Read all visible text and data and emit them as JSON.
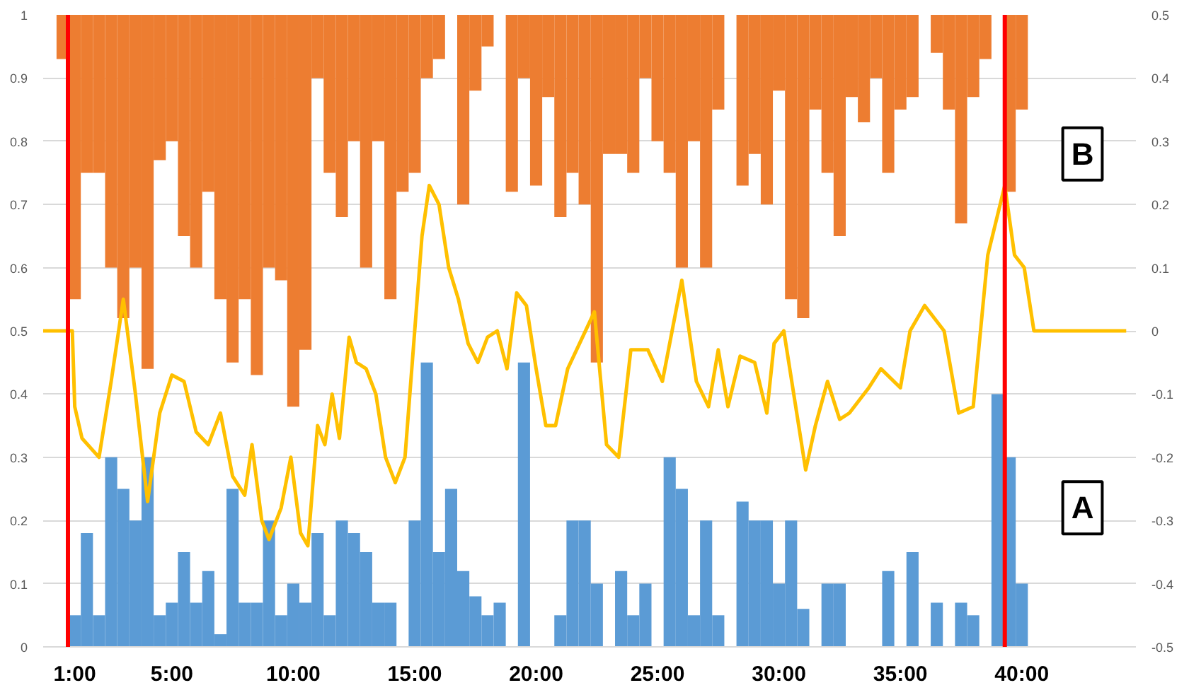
{
  "chart_data": {
    "type": "bar",
    "x": [
      0.5,
      1,
      1.5,
      2,
      2.5,
      3,
      3.5,
      4,
      4.5,
      5,
      5.5,
      6,
      6.5,
      7,
      7.5,
      8,
      8.5,
      9,
      9.5,
      10,
      10.5,
      11,
      11.5,
      12,
      12.5,
      13,
      13.5,
      14,
      14.5,
      15,
      15.5,
      16,
      16.5,
      17,
      17.5,
      18,
      18.5,
      19,
      19.5,
      20,
      20.5,
      21,
      21.5,
      22,
      22.5,
      23,
      23.5,
      24,
      24.5,
      25,
      25.5,
      26,
      26.5,
      27,
      27.5,
      28,
      28.5,
      29,
      29.5,
      30,
      30.5,
      31,
      31.5,
      32,
      32.5,
      33,
      33.5,
      34,
      34.5,
      35,
      35.5,
      36,
      36.5,
      37,
      37.5,
      38,
      38.5,
      39,
      39.5,
      40
    ],
    "series": [
      {
        "name": "B",
        "color": "#ed7d31",
        "base": [
          1,
          1,
          1,
          1,
          1,
          1,
          1,
          1,
          1,
          1,
          1,
          1,
          1,
          1,
          1,
          1,
          1,
          1,
          1,
          1,
          1,
          1,
          1,
          1,
          1,
          1,
          1,
          1,
          1,
          1,
          1,
          1,
          null,
          1,
          1,
          1,
          null,
          1,
          1,
          1,
          1,
          1,
          1,
          1,
          1,
          1,
          1,
          1,
          1,
          1,
          1,
          1,
          1,
          1,
          1,
          null,
          1,
          1,
          1,
          1,
          1,
          1,
          1,
          1,
          1,
          1,
          1,
          1,
          1,
          1,
          1,
          null,
          1,
          1,
          1,
          1,
          1,
          null,
          1,
          1
        ],
        "values": [
          -0.07,
          -0.45,
          -0.25,
          -0.25,
          -0.4,
          -0.48,
          -0.4,
          -0.56,
          -0.23,
          -0.2,
          -0.35,
          -0.4,
          -0.28,
          -0.45,
          -0.55,
          -0.45,
          -0.57,
          -0.4,
          -0.42,
          -0.62,
          -0.53,
          -0.1,
          -0.25,
          -0.32,
          -0.2,
          -0.4,
          -0.2,
          -0.45,
          -0.28,
          -0.25,
          -0.1,
          -0.07,
          null,
          -0.3,
          -0.12,
          -0.05,
          null,
          -0.28,
          -0.1,
          -0.27,
          -0.13,
          -0.32,
          -0.25,
          -0.3,
          -0.55,
          -0.22,
          -0.22,
          -0.25,
          -0.1,
          -0.2,
          -0.25,
          -0.4,
          -0.2,
          -0.4,
          -0.15,
          null,
          -0.27,
          -0.22,
          -0.3,
          -0.12,
          -0.45,
          -0.48,
          -0.15,
          -0.25,
          -0.35,
          -0.13,
          -0.17,
          -0.1,
          -0.25,
          -0.15,
          -0.13,
          null,
          -0.06,
          -0.15,
          -0.33,
          -0.13,
          -0.07,
          null,
          -0.28,
          -0.15
        ]
      },
      {
        "name": "A",
        "color": "#5b9bd5",
        "values": [
          null,
          0.05,
          0.18,
          0.05,
          0.3,
          0.25,
          0.2,
          0.3,
          0.05,
          0.07,
          0.15,
          0.07,
          0.12,
          0.02,
          0.25,
          0.07,
          0.07,
          0.2,
          0.05,
          0.1,
          0.07,
          0.18,
          0.05,
          0.2,
          0.18,
          0.15,
          0.07,
          0.07,
          null,
          0.2,
          0.45,
          0.15,
          0.25,
          0.12,
          0.08,
          0.05,
          0.07,
          null,
          0.45,
          null,
          null,
          0.05,
          0.2,
          0.2,
          0.1,
          null,
          0.12,
          0.05,
          0.1,
          null,
          0.3,
          0.25,
          0.05,
          0.2,
          0.05,
          null,
          0.23,
          0.2,
          0.2,
          0.1,
          0.2,
          0.06,
          null,
          0.1,
          0.1,
          null,
          null,
          null,
          0.12,
          null,
          0.15,
          null,
          0.07,
          null,
          0.07,
          0.05,
          null,
          0.4,
          0.3,
          0.1
        ]
      },
      {
        "type": "line",
        "axis": "y2",
        "color": "#ffc000",
        "x": [
          -0.3,
          0.9,
          1.0,
          1.3,
          2.0,
          2.5,
          3.0,
          3.5,
          4.0,
          4.5,
          5.0,
          5.5,
          6.0,
          6.5,
          7.0,
          7.5,
          8.0,
          8.3,
          8.7,
          9.0,
          9.5,
          9.9,
          10.3,
          10.6,
          11.0,
          11.3,
          11.6,
          11.9,
          12.3,
          12.6,
          13.0,
          13.4,
          13.8,
          14.2,
          14.6,
          15.0,
          15.3,
          15.6,
          16.0,
          16.4,
          16.8,
          17.2,
          17.6,
          18.0,
          18.4,
          18.8,
          19.2,
          19.6,
          20.0,
          20.4,
          20.8,
          21.3,
          22.4,
          22.9,
          23.4,
          23.9,
          24.6,
          25.2,
          26.0,
          26.6,
          27.1,
          27.5,
          27.9,
          28.4,
          29.0,
          29.5,
          29.8,
          30.2,
          31.1,
          31.5,
          32.0,
          32.5,
          32.9,
          33.7,
          34.2,
          35.0,
          35.4,
          36.0,
          36.8,
          37.4,
          38.0,
          38.6,
          39.3,
          39.7,
          40.1,
          40.5,
          44.3
        ],
        "values": [
          0,
          0,
          -0.12,
          -0.17,
          -0.2,
          -0.08,
          0.05,
          -0.1,
          -0.27,
          -0.13,
          -0.07,
          -0.08,
          -0.16,
          -0.18,
          -0.13,
          -0.23,
          -0.26,
          -0.18,
          -0.3,
          -0.33,
          -0.28,
          -0.2,
          -0.32,
          -0.34,
          -0.15,
          -0.18,
          -0.1,
          -0.17,
          -0.01,
          -0.05,
          -0.06,
          -0.1,
          -0.2,
          -0.24,
          -0.2,
          0,
          0.15,
          0.23,
          0.2,
          0.1,
          0.05,
          -0.02,
          -0.05,
          -0.01,
          0,
          -0.06,
          0.06,
          0.04,
          -0.06,
          -0.15,
          -0.15,
          -0.06,
          0.03,
          -0.18,
          -0.2,
          -0.03,
          -0.03,
          -0.08,
          0.08,
          -0.08,
          -0.12,
          -0.03,
          -0.12,
          -0.04,
          -0.05,
          -0.13,
          -0.02,
          0,
          -0.22,
          -0.15,
          -0.08,
          -0.14,
          -0.13,
          -0.09,
          -0.06,
          -0.09,
          0,
          0.04,
          0,
          -0.13,
          -0.12,
          0.12,
          0.23,
          0.12,
          0.1,
          0,
          0
        ]
      }
    ],
    "xlim": [
      -0.3,
      44.7
    ],
    "xticks": [
      {
        "value": 1,
        "label": "1:00"
      },
      {
        "value": 5,
        "label": "5:00"
      },
      {
        "value": 10,
        "label": "10:00"
      },
      {
        "value": 15,
        "label": "15:00"
      },
      {
        "value": 20,
        "label": "20:00"
      },
      {
        "value": 25,
        "label": "25:00"
      },
      {
        "value": 30,
        "label": "30:00"
      },
      {
        "value": 35,
        "label": "35:00"
      },
      {
        "value": 40,
        "label": "40:00"
      }
    ],
    "ylim": [
      0,
      1
    ],
    "yticks": [
      0,
      0.1,
      0.2,
      0.3,
      0.4,
      0.5,
      0.6,
      0.7,
      0.8,
      0.9,
      1
    ],
    "y2lim": [
      -0.5,
      0.5
    ],
    "y2ticks": [
      -0.5,
      -0.4,
      -0.3,
      -0.2,
      -0.1,
      0,
      0.1,
      0.2,
      0.3,
      0.4,
      0.5
    ],
    "grid": "y",
    "ref_lines": [
      {
        "axis": "x",
        "value": 0.72,
        "color": "#ff0000"
      },
      {
        "axis": "x",
        "value": 39.3,
        "color": "#ff0000"
      }
    ]
  }
}
